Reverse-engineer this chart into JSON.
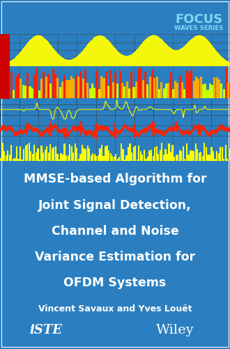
{
  "bg_color": "#2b7fc0",
  "focus_text": "FOCUS",
  "waves_text": "WAVES SERIES",
  "focus_color": "#7dd6f5",
  "waves_color": "#7dd6f5",
  "title_lines": [
    "MMSE-based Algorithm for",
    "Joint Signal Detection,",
    "Channel and Noise",
    "Variance Estimation for",
    "OFDM Systems"
  ],
  "author_line": "Vincent Savaux and Yves Louët",
  "title_color": "#ffffff",
  "author_color": "#ffffff",
  "iste_color": "#ffffff",
  "wiley_color": "#ffffff"
}
